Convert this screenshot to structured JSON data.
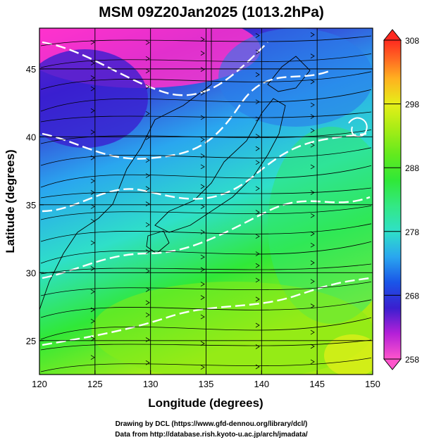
{
  "title": "MSM 09Z20Jan2025 (1013.2hPa)",
  "x_axis": {
    "label": "Longitude (degrees)",
    "range": [
      120,
      150
    ],
    "ticks": [
      "120",
      "125",
      "130",
      "135",
      "140",
      "145",
      "150"
    ]
  },
  "y_axis": {
    "label": "Latitude  (degrees)",
    "range": [
      22.5,
      48
    ],
    "ticks": [
      "25",
      "30",
      "35",
      "40",
      "45"
    ]
  },
  "colorbar": {
    "range": [
      258,
      308
    ],
    "ticks": [
      "308",
      "298",
      "288",
      "278",
      "268",
      "258"
    ],
    "stops": [
      {
        "v": 258,
        "c": "#ff55cc"
      },
      {
        "v": 262,
        "c": "#b420d8"
      },
      {
        "v": 266,
        "c": "#3a1fcf"
      },
      {
        "v": 270,
        "c": "#1a55e8"
      },
      {
        "v": 274,
        "c": "#2aa6ef"
      },
      {
        "v": 278,
        "c": "#2fe0c8"
      },
      {
        "v": 282,
        "c": "#33e884"
      },
      {
        "v": 286,
        "c": "#30e838"
      },
      {
        "v": 290,
        "c": "#62ea1e"
      },
      {
        "v": 294,
        "c": "#a6ec16"
      },
      {
        "v": 298,
        "c": "#e6ef18"
      },
      {
        "v": 302,
        "c": "#ffb020"
      },
      {
        "v": 305,
        "c": "#ff6a22"
      },
      {
        "v": 308,
        "c": "#ff2a20"
      }
    ]
  },
  "credits": [
    "Drawing by DCL (https://www.gfd-dennou.org/library/dcl/)",
    "Data from http://database.rish.kyoto-u.ac.jp/arch/jmadata/"
  ]
}
